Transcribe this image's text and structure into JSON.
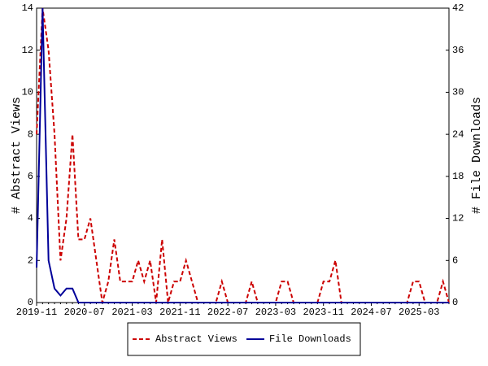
{
  "chart_data": {
    "type": "line",
    "categories": [
      "2019-11",
      null,
      null,
      null,
      null,
      null,
      null,
      null,
      "2020-07",
      null,
      null,
      null,
      null,
      null,
      null,
      null,
      "2021-03",
      null,
      null,
      null,
      null,
      null,
      null,
      null,
      "2021-11",
      null,
      null,
      null,
      null,
      null,
      null,
      null,
      "2022-07",
      null,
      null,
      null,
      null,
      null,
      null,
      null,
      "2023-03",
      null,
      null,
      null,
      null,
      null,
      null,
      null,
      "2023-11",
      null,
      null,
      null,
      null,
      null,
      null,
      null,
      "2024-07",
      null,
      null,
      null,
      null,
      null,
      null,
      null,
      "2025-03",
      null,
      null,
      null,
      null,
      null
    ],
    "series": [
      {
        "name": "Abstract Views",
        "color": "#cc0000",
        "dash": true,
        "axis": "y",
        "values": [
          8,
          14,
          12,
          8,
          2,
          4,
          8,
          3,
          3,
          4,
          2,
          0,
          1,
          3,
          1,
          1,
          1,
          2,
          1,
          2,
          0,
          3,
          0,
          1,
          1,
          2,
          1,
          0,
          0,
          0,
          0,
          1,
          0,
          0,
          0,
          0,
          1,
          0,
          0,
          0,
          0,
          1,
          1,
          0,
          0,
          0,
          0,
          0,
          1,
          1,
          2,
          0,
          0,
          0,
          0,
          0,
          0,
          0,
          0,
          0,
          0,
          0,
          0,
          1,
          1,
          0,
          0,
          0,
          1,
          0
        ]
      },
      {
        "name": "File Downloads",
        "color": "#000099",
        "dash": false,
        "axis": "y2",
        "values": [
          5,
          42,
          6,
          2,
          1,
          2,
          2,
          0,
          0,
          0,
          0,
          0,
          0,
          0,
          0,
          0,
          0,
          0,
          0,
          0,
          0,
          0,
          0,
          0,
          0,
          0,
          0,
          0,
          0,
          0,
          0,
          0,
          0,
          0,
          0,
          0,
          0,
          0,
          0,
          0,
          0,
          0,
          0,
          0,
          0,
          0,
          0,
          0,
          0,
          0,
          0,
          0,
          0,
          0,
          0,
          0,
          0,
          0,
          0,
          0,
          0,
          0,
          0,
          0,
          0,
          0,
          0,
          0,
          0,
          0
        ]
      }
    ],
    "ylabel": "# Abstract Views",
    "y2label": "# File Downloads",
    "ylim": [
      0,
      14
    ],
    "yticks": [
      0,
      2,
      4,
      6,
      8,
      10,
      12,
      14
    ],
    "y2lim": [
      0,
      42
    ],
    "y2ticks": [
      0,
      6,
      12,
      18,
      24,
      30,
      36,
      42
    ],
    "legend": "bottom"
  }
}
